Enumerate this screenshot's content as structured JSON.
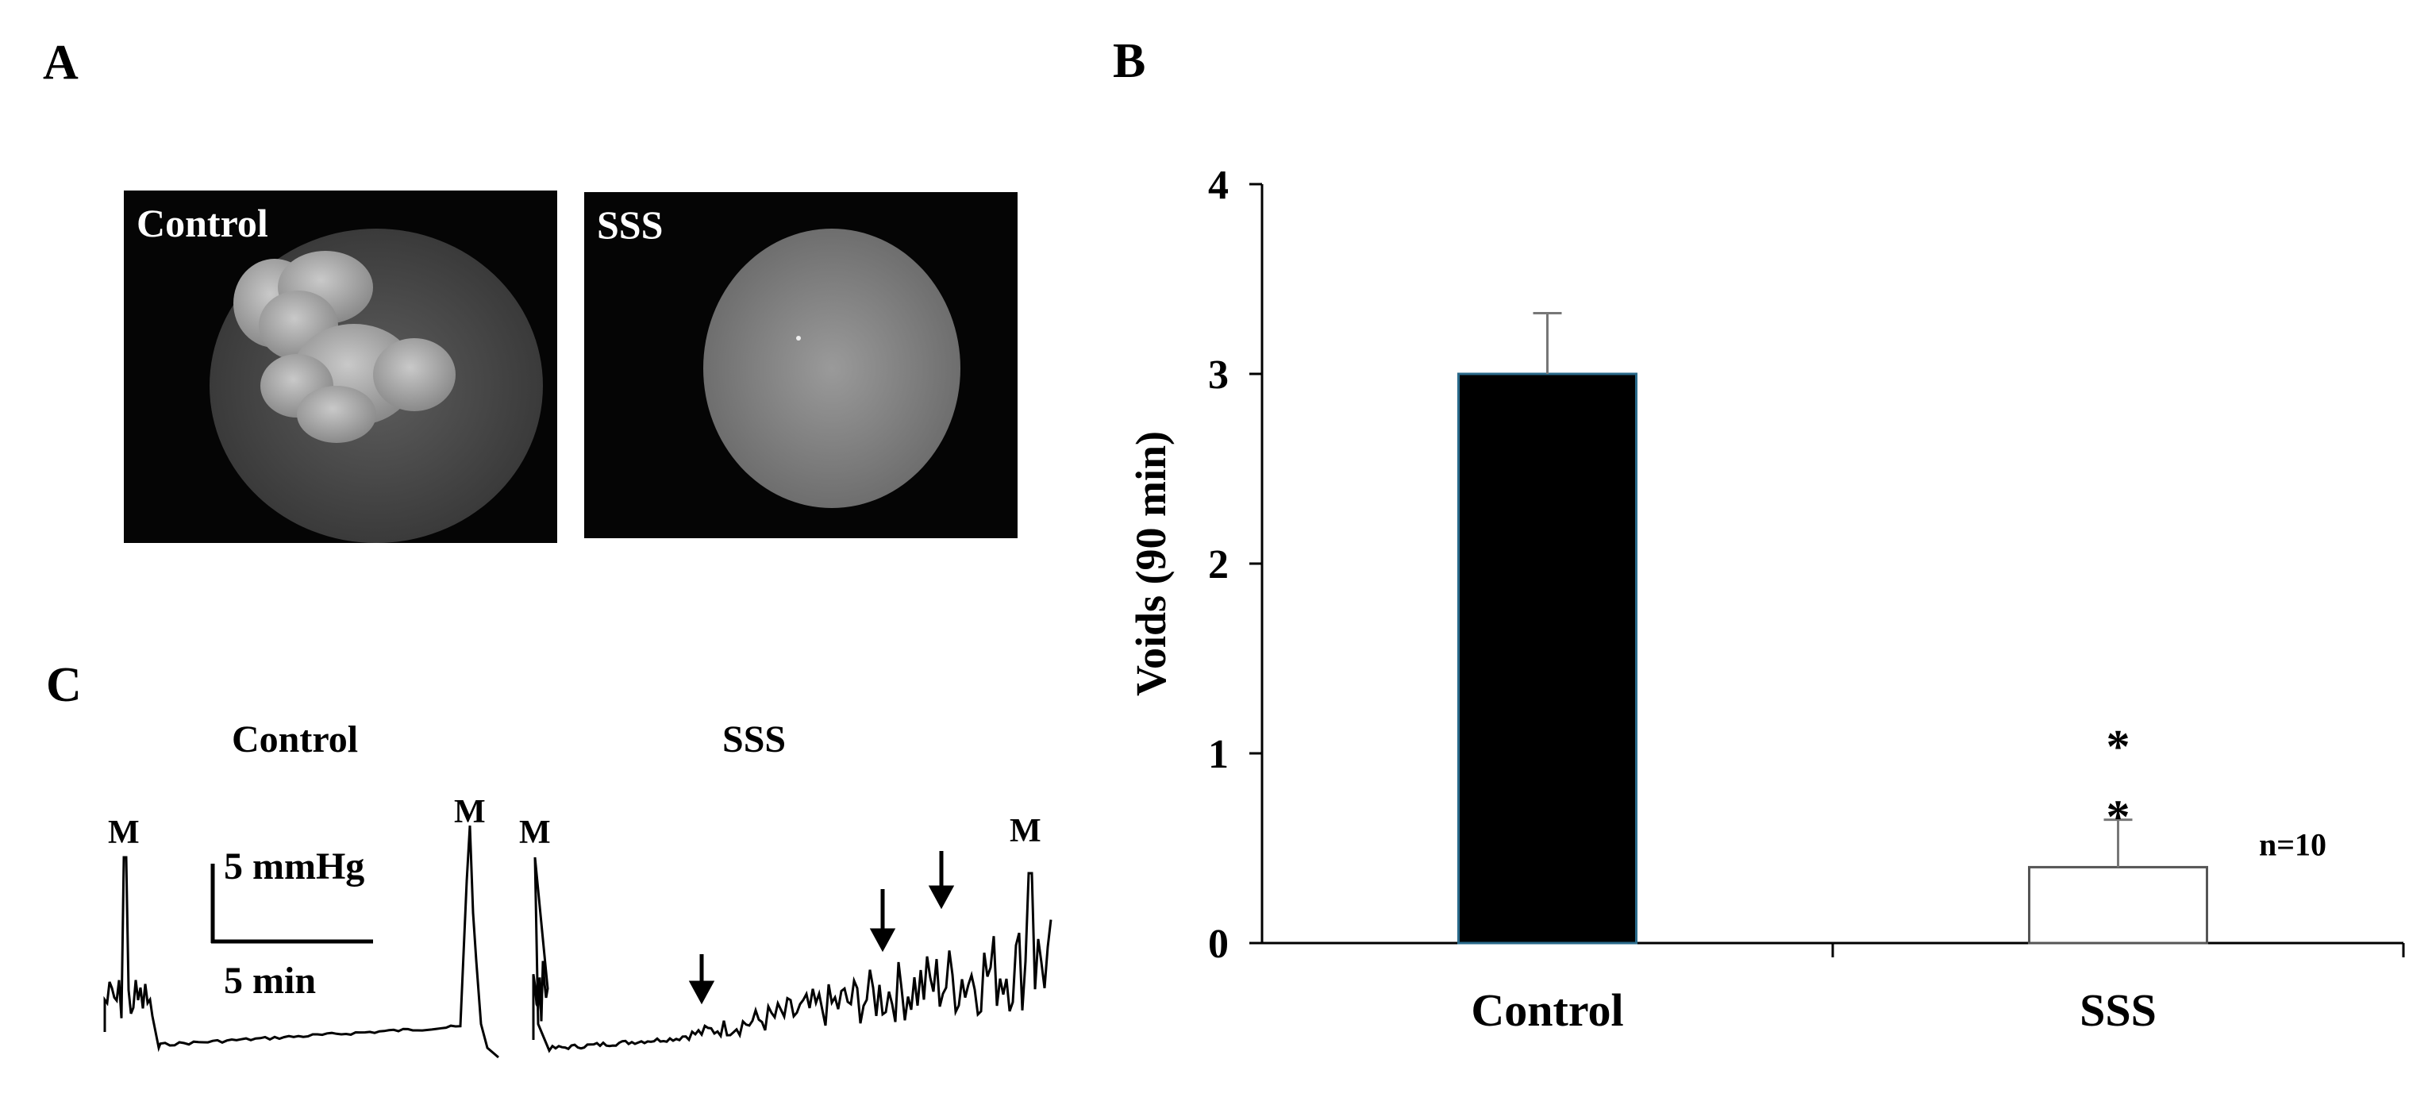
{
  "panels": {
    "A": {
      "letter": "A",
      "images": [
        {
          "label": "Control"
        },
        {
          "label": "SSS"
        }
      ]
    },
    "B": {
      "letter": "B"
    },
    "C": {
      "letter": "C",
      "traces": [
        {
          "title": "Control",
          "markers": [
            "M",
            "M"
          ]
        },
        {
          "title": "SSS",
          "markers": [
            "M",
            "M"
          ]
        }
      ],
      "scale_bar": {
        "vertical": "5 mmHg",
        "horizontal": "5 min"
      }
    }
  },
  "chart_data": {
    "type": "bar",
    "categories": [
      "Control",
      "SSS"
    ],
    "values": [
      3.0,
      0.4
    ],
    "errors": [
      0.32,
      0.25
    ],
    "bar_colors": [
      "#000000",
      "#ffffff"
    ],
    "bar_edge_color": "#2a6a8a",
    "ylabel": "Voids (90 min)",
    "xlabel": "",
    "ylim": [
      0,
      4
    ],
    "yticks": [
      "0",
      "1",
      "2",
      "3",
      "4"
    ],
    "significance": {
      "category": "SSS",
      "symbols": [
        "*",
        "*"
      ]
    },
    "annotation": "n=10",
    "grid": false,
    "legend": "none"
  }
}
